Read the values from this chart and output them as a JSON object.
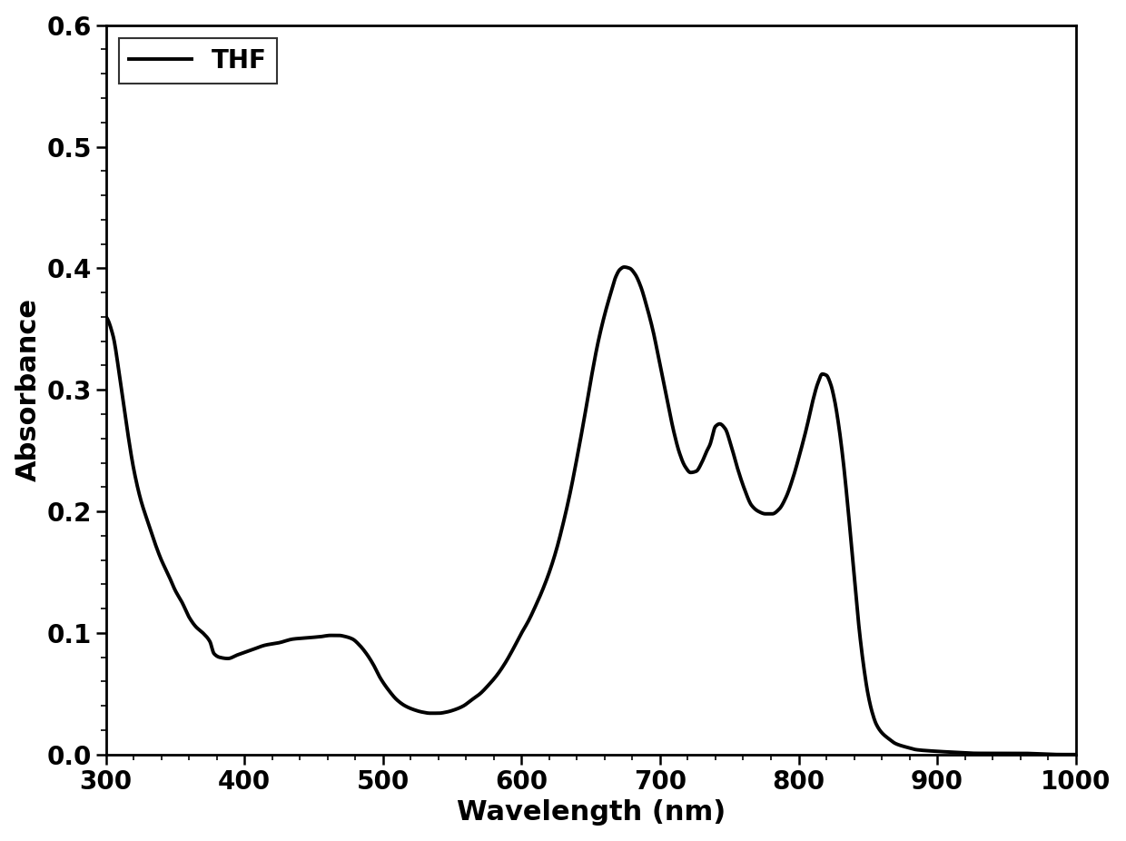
{
  "xlabel": "Wavelength (nm)",
  "ylabel": "Absorbance",
  "legend_label": "THF",
  "xlim": [
    300,
    1000
  ],
  "ylim": [
    0.0,
    0.6
  ],
  "xticks": [
    300,
    400,
    500,
    600,
    700,
    800,
    900,
    1000
  ],
  "yticks": [
    0.0,
    0.1,
    0.2,
    0.3,
    0.4,
    0.5,
    0.6
  ],
  "line_color": "#000000",
  "line_width": 2.8,
  "background_color": "#ffffff",
  "xlabel_fontsize": 22,
  "ylabel_fontsize": 22,
  "tick_fontsize": 20,
  "legend_fontsize": 20,
  "keypoints": [
    [
      300,
      0.36
    ],
    [
      305,
      0.345
    ],
    [
      310,
      0.31
    ],
    [
      315,
      0.27
    ],
    [
      320,
      0.235
    ],
    [
      325,
      0.21
    ],
    [
      330,
      0.192
    ],
    [
      335,
      0.175
    ],
    [
      340,
      0.16
    ],
    [
      345,
      0.148
    ],
    [
      350,
      0.135
    ],
    [
      355,
      0.125
    ],
    [
      360,
      0.113
    ],
    [
      365,
      0.105
    ],
    [
      370,
      0.1
    ],
    [
      375,
      0.093
    ],
    [
      378,
      0.083
    ],
    [
      382,
      0.08
    ],
    [
      388,
      0.079
    ],
    [
      395,
      0.082
    ],
    [
      405,
      0.086
    ],
    [
      415,
      0.09
    ],
    [
      425,
      0.092
    ],
    [
      435,
      0.095
    ],
    [
      445,
      0.096
    ],
    [
      455,
      0.097
    ],
    [
      462,
      0.098
    ],
    [
      468,
      0.098
    ],
    [
      473,
      0.097
    ],
    [
      478,
      0.095
    ],
    [
      483,
      0.09
    ],
    [
      488,
      0.083
    ],
    [
      493,
      0.074
    ],
    [
      498,
      0.063
    ],
    [
      504,
      0.053
    ],
    [
      510,
      0.045
    ],
    [
      516,
      0.04
    ],
    [
      522,
      0.037
    ],
    [
      528,
      0.035
    ],
    [
      534,
      0.034
    ],
    [
      540,
      0.034
    ],
    [
      546,
      0.035
    ],
    [
      552,
      0.037
    ],
    [
      558,
      0.04
    ],
    [
      564,
      0.045
    ],
    [
      570,
      0.05
    ],
    [
      576,
      0.057
    ],
    [
      582,
      0.065
    ],
    [
      588,
      0.075
    ],
    [
      594,
      0.087
    ],
    [
      600,
      0.1
    ],
    [
      605,
      0.11
    ],
    [
      610,
      0.122
    ],
    [
      615,
      0.135
    ],
    [
      620,
      0.15
    ],
    [
      625,
      0.168
    ],
    [
      630,
      0.19
    ],
    [
      635,
      0.215
    ],
    [
      640,
      0.244
    ],
    [
      645,
      0.275
    ],
    [
      650,
      0.308
    ],
    [
      655,
      0.338
    ],
    [
      660,
      0.362
    ],
    [
      665,
      0.382
    ],
    [
      668,
      0.393
    ],
    [
      671,
      0.399
    ],
    [
      674,
      0.401
    ],
    [
      678,
      0.4
    ],
    [
      682,
      0.395
    ],
    [
      686,
      0.385
    ],
    [
      690,
      0.37
    ],
    [
      695,
      0.348
    ],
    [
      700,
      0.32
    ],
    [
      705,
      0.292
    ],
    [
      710,
      0.265
    ],
    [
      714,
      0.248
    ],
    [
      718,
      0.237
    ],
    [
      722,
      0.232
    ],
    [
      726,
      0.233
    ],
    [
      730,
      0.24
    ],
    [
      733,
      0.248
    ],
    [
      736,
      0.255
    ],
    [
      740,
      0.27
    ],
    [
      743,
      0.272
    ],
    [
      747,
      0.268
    ],
    [
      751,
      0.255
    ],
    [
      756,
      0.235
    ],
    [
      761,
      0.218
    ],
    [
      766,
      0.205
    ],
    [
      771,
      0.2
    ],
    [
      776,
      0.198
    ],
    [
      781,
      0.198
    ],
    [
      786,
      0.202
    ],
    [
      791,
      0.212
    ],
    [
      796,
      0.228
    ],
    [
      801,
      0.248
    ],
    [
      806,
      0.27
    ],
    [
      810,
      0.29
    ],
    [
      814,
      0.306
    ],
    [
      817,
      0.313
    ],
    [
      820,
      0.312
    ],
    [
      823,
      0.305
    ],
    [
      826,
      0.291
    ],
    [
      829,
      0.27
    ],
    [
      832,
      0.243
    ],
    [
      835,
      0.21
    ],
    [
      838,
      0.173
    ],
    [
      841,
      0.135
    ],
    [
      844,
      0.1
    ],
    [
      847,
      0.072
    ],
    [
      850,
      0.05
    ],
    [
      853,
      0.035
    ],
    [
      856,
      0.025
    ],
    [
      860,
      0.018
    ],
    [
      865,
      0.013
    ],
    [
      870,
      0.009
    ],
    [
      878,
      0.006
    ],
    [
      885,
      0.004
    ],
    [
      895,
      0.003
    ],
    [
      910,
      0.002
    ],
    [
      930,
      0.001
    ],
    [
      960,
      0.001
    ],
    [
      990,
      0.0
    ],
    [
      1000,
      0.0
    ]
  ]
}
